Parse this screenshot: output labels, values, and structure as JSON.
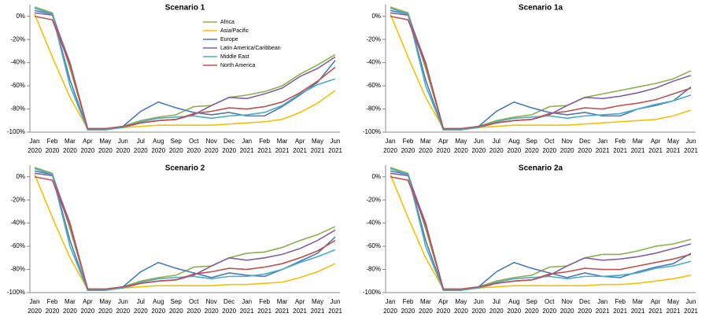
{
  "chart_data": [
    {
      "type": "line",
      "title": "Scenario 1",
      "legend": "upper-center",
      "categories": [
        "Jan 2020",
        "Feb 2020",
        "Mar 2020",
        "Apr 2020",
        "May 2020",
        "Jun 2020",
        "Jul 2020",
        "Aug 2020",
        "Sep 2020",
        "Oct 2020",
        "Nov 2020",
        "Dec 2020",
        "Jan 2021",
        "Feb 2021",
        "Mar 2021",
        "Apr 2021",
        "May 2021",
        "Jun 2021"
      ],
      "ylim": [
        -100,
        10
      ],
      "yticks": [
        {
          "value": 0,
          "label": "0%"
        },
        {
          "value": -20,
          "label": "-20%"
        },
        {
          "value": -40,
          "label": "-40%"
        },
        {
          "value": -60,
          "label": "-60%"
        },
        {
          "value": -80,
          "label": "-80%"
        },
        {
          "value": -100,
          "label": "-100%"
        }
      ],
      "series": [
        {
          "name": "Africa",
          "color": "#8db04e",
          "values": [
            8,
            3,
            -45,
            -97,
            -97,
            -95,
            -90,
            -87,
            -85,
            -78,
            -77,
            -70,
            -68,
            -65,
            -60,
            -50,
            -42,
            -33
          ]
        },
        {
          "name": "Asia/Pacific",
          "color": "#f5c000",
          "values": [
            2,
            -35,
            -70,
            -97,
            -97,
            -96,
            -95,
            -94,
            -94,
            -94,
            -94,
            -93,
            -92,
            -91,
            -89,
            -83,
            -75,
            -64
          ]
        },
        {
          "name": "Europe",
          "color": "#4a7ab8",
          "values": [
            5,
            2,
            -55,
            -98,
            -98,
            -95,
            -82,
            -74,
            -79,
            -83,
            -85,
            -83,
            -86,
            -86,
            -78,
            -68,
            -57,
            -38
          ]
        },
        {
          "name": "Latin America/Caribbean",
          "color": "#8060a8",
          "values": [
            3,
            1,
            -40,
            -97,
            -97,
            -96,
            -92,
            -90,
            -89,
            -85,
            -77,
            -70,
            -71,
            -67,
            -62,
            -52,
            -45,
            -35
          ]
        },
        {
          "name": "Middle East",
          "color": "#4bacc6",
          "values": [
            7,
            2,
            -60,
            -98,
            -98,
            -96,
            -91,
            -88,
            -87,
            -86,
            -88,
            -86,
            -85,
            -83,
            -77,
            -67,
            -59,
            -54
          ]
        },
        {
          "name": "North America",
          "color": "#c0504d",
          "values": [
            0,
            -3,
            -42,
            -97,
            -97,
            -95,
            -92,
            -90,
            -89,
            -84,
            -82,
            -79,
            -80,
            -78,
            -74,
            -66,
            -56,
            -44
          ]
        }
      ]
    },
    {
      "type": "line",
      "title": "Scenario 1a",
      "categories": [
        "Jan 2020",
        "Feb 2020",
        "Mar 2020",
        "Apr 2020",
        "May 2020",
        "Jun 2020",
        "Jul 2020",
        "Aug 2020",
        "Sep 2020",
        "Oct 2020",
        "Nov 2020",
        "Dec 2020",
        "Jan 2021",
        "Feb 2021",
        "Mar 2021",
        "Apr 2021",
        "May 2021",
        "Jun 2021"
      ],
      "ylim": [
        -100,
        10
      ],
      "yticks": [
        {
          "value": 0,
          "label": "0%"
        },
        {
          "value": -20,
          "label": "-20%"
        },
        {
          "value": -40,
          "label": "-40%"
        },
        {
          "value": -60,
          "label": "-60%"
        },
        {
          "value": -80,
          "label": "-80%"
        },
        {
          "value": -100,
          "label": "-100%"
        }
      ],
      "series": [
        {
          "color": "#8db04e",
          "values": [
            8,
            3,
            -45,
            -97,
            -97,
            -95,
            -90,
            -87,
            -85,
            -78,
            -77,
            -70,
            -67,
            -64,
            -61,
            -58,
            -54,
            -47
          ]
        },
        {
          "color": "#f5c000",
          "values": [
            2,
            -35,
            -70,
            -97,
            -97,
            -96,
            -95,
            -94,
            -94,
            -94,
            -94,
            -93,
            -92,
            -91,
            -90,
            -89,
            -86,
            -81
          ]
        },
        {
          "color": "#4a7ab8",
          "values": [
            5,
            2,
            -55,
            -98,
            -98,
            -95,
            -82,
            -74,
            -79,
            -83,
            -85,
            -83,
            -86,
            -86,
            -80,
            -77,
            -73,
            -61
          ]
        },
        {
          "color": "#8060a8",
          "values": [
            3,
            1,
            -40,
            -97,
            -97,
            -96,
            -92,
            -90,
            -89,
            -85,
            -77,
            -70,
            -71,
            -69,
            -66,
            -62,
            -56,
            -51
          ]
        },
        {
          "color": "#4bacc6",
          "values": [
            7,
            2,
            -60,
            -98,
            -98,
            -96,
            -91,
            -88,
            -87,
            -86,
            -88,
            -86,
            -85,
            -84,
            -80,
            -76,
            -73,
            -68
          ]
        },
        {
          "color": "#c0504d",
          "values": [
            0,
            -3,
            -42,
            -97,
            -97,
            -95,
            -92,
            -90,
            -89,
            -84,
            -82,
            -79,
            -80,
            -77,
            -75,
            -72,
            -67,
            -62
          ]
        }
      ]
    },
    {
      "type": "line",
      "title": "Scenario 2",
      "categories": [
        "Jan 2020",
        "Feb 2020",
        "Mar 2020",
        "Apr 2020",
        "May 2020",
        "Jun 2020",
        "Jul 2020",
        "Aug 2020",
        "Sep 2020",
        "Oct 2020",
        "Nov 2020",
        "Dec 2020",
        "Jan 2021",
        "Feb 2021",
        "Mar 2021",
        "Apr 2021",
        "May 2021",
        "Jun 2021"
      ],
      "ylim": [
        -100,
        10
      ],
      "yticks": [
        {
          "value": 0,
          "label": "0%"
        },
        {
          "value": -20,
          "label": "-20%"
        },
        {
          "value": -40,
          "label": "-40%"
        },
        {
          "value": -60,
          "label": "-60%"
        },
        {
          "value": -80,
          "label": "-80%"
        },
        {
          "value": -100,
          "label": "-100%"
        }
      ],
      "series": [
        {
          "color": "#8db04e",
          "values": [
            8,
            3,
            -45,
            -97,
            -97,
            -95,
            -90,
            -87,
            -85,
            -78,
            -77,
            -70,
            -66,
            -65,
            -61,
            -55,
            -50,
            -43
          ]
        },
        {
          "color": "#f5c000",
          "values": [
            2,
            -35,
            -70,
            -97,
            -97,
            -96,
            -95,
            -94,
            -94,
            -94,
            -94,
            -93,
            -93,
            -92,
            -91,
            -87,
            -82,
            -75
          ]
        },
        {
          "color": "#4a7ab8",
          "values": [
            5,
            2,
            -55,
            -98,
            -98,
            -95,
            -82,
            -74,
            -79,
            -83,
            -87,
            -83,
            -85,
            -86,
            -80,
            -73,
            -66,
            -52
          ]
        },
        {
          "color": "#8060a8",
          "values": [
            3,
            1,
            -40,
            -97,
            -97,
            -96,
            -92,
            -90,
            -89,
            -85,
            -77,
            -70,
            -72,
            -70,
            -67,
            -62,
            -55,
            -46
          ]
        },
        {
          "color": "#4bacc6",
          "values": [
            7,
            2,
            -60,
            -98,
            -98,
            -96,
            -91,
            -88,
            -87,
            -86,
            -88,
            -86,
            -86,
            -84,
            -80,
            -74,
            -69,
            -63
          ]
        },
        {
          "color": "#c0504d",
          "values": [
            0,
            -3,
            -42,
            -97,
            -97,
            -95,
            -92,
            -90,
            -89,
            -84,
            -82,
            -79,
            -80,
            -78,
            -75,
            -70,
            -64,
            -55
          ]
        }
      ]
    },
    {
      "type": "line",
      "title": "Scenario 2a",
      "categories": [
        "Jan 2020",
        "Feb 2020",
        "Mar 2020",
        "Apr 2020",
        "May 2020",
        "Jun 2020",
        "Jul 2020",
        "Aug 2020",
        "Sep 2020",
        "Oct 2020",
        "Nov 2020",
        "Dec 2020",
        "Jan 2021",
        "Feb 2021",
        "Mar 2021",
        "Apr 2021",
        "May 2021",
        "Jun 2021"
      ],
      "ylim": [
        -100,
        10
      ],
      "yticks": [
        {
          "value": 0,
          "label": "0%"
        },
        {
          "value": -20,
          "label": "-20%"
        },
        {
          "value": -40,
          "label": "-40%"
        },
        {
          "value": -60,
          "label": "-60%"
        },
        {
          "value": -80,
          "label": "-80%"
        },
        {
          "value": -100,
          "label": "-100%"
        }
      ],
      "series": [
        {
          "color": "#8db04e",
          "values": [
            8,
            3,
            -45,
            -97,
            -97,
            -95,
            -90,
            -87,
            -85,
            -78,
            -77,
            -70,
            -67,
            -67,
            -64,
            -60,
            -58,
            -54
          ]
        },
        {
          "color": "#f5c000",
          "values": [
            2,
            -35,
            -70,
            -97,
            -97,
            -96,
            -95,
            -94,
            -94,
            -94,
            -94,
            -94,
            -93,
            -93,
            -92,
            -90,
            -88,
            -85
          ]
        },
        {
          "color": "#4a7ab8",
          "values": [
            5,
            2,
            -55,
            -98,
            -98,
            -95,
            -82,
            -74,
            -79,
            -83,
            -87,
            -83,
            -86,
            -87,
            -82,
            -78,
            -75,
            -66
          ]
        },
        {
          "color": "#8060a8",
          "values": [
            3,
            1,
            -40,
            -97,
            -97,
            -96,
            -92,
            -90,
            -89,
            -85,
            -77,
            -70,
            -72,
            -71,
            -69,
            -66,
            -62,
            -58
          ]
        },
        {
          "color": "#4bacc6",
          "values": [
            7,
            2,
            -60,
            -98,
            -98,
            -96,
            -91,
            -88,
            -87,
            -86,
            -88,
            -86,
            -86,
            -85,
            -83,
            -79,
            -77,
            -73
          ]
        },
        {
          "color": "#c0504d",
          "values": [
            0,
            -3,
            -42,
            -97,
            -97,
            -95,
            -92,
            -90,
            -89,
            -84,
            -82,
            -79,
            -80,
            -80,
            -77,
            -74,
            -71,
            -67
          ]
        }
      ]
    }
  ]
}
